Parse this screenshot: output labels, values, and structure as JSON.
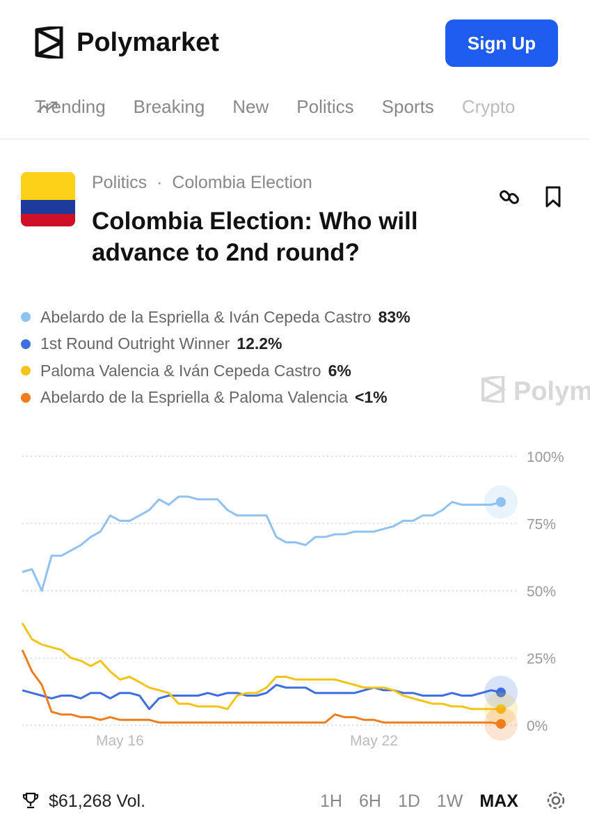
{
  "header": {
    "brand": "Polymarket",
    "signup": "Sign Up"
  },
  "nav": [
    "Trending",
    "Breaking",
    "New",
    "Politics",
    "Sports",
    "Crypto"
  ],
  "market": {
    "category": "Politics",
    "separator": "·",
    "subcategory": "Colombia Election",
    "title": "Colombia Election: Who will advance to 2nd round?"
  },
  "chart_data": {
    "type": "line",
    "categories": [
      null,
      null,
      null,
      null,
      null,
      null,
      null,
      null,
      null,
      null,
      "May 16",
      null,
      null,
      null,
      null,
      null,
      null,
      null,
      null,
      null,
      null,
      null,
      null,
      null,
      null,
      null,
      null,
      null,
      null,
      null,
      null,
      null,
      null,
      null,
      null,
      null,
      "May 22",
      null,
      null,
      null,
      null,
      null,
      null,
      null,
      null,
      null,
      null,
      null,
      null,
      null
    ],
    "series": [
      {
        "name": "Abelardo de la Espriella & Iván Cepeda Castro",
        "color": "#8fc1f2",
        "current_label": "83%",
        "values": [
          57,
          58,
          50,
          63,
          63,
          65,
          67,
          70,
          72,
          78,
          76,
          76,
          78,
          80,
          84,
          82,
          85,
          85,
          84,
          84,
          84,
          80,
          78,
          78,
          78,
          78,
          70,
          68,
          68,
          67,
          70,
          70,
          71,
          71,
          72,
          72,
          72,
          73,
          74,
          76,
          76,
          78,
          78,
          80,
          83,
          82,
          82,
          82,
          82,
          83
        ]
      },
      {
        "name": "1st Round Outright Winner",
        "color": "#3d6fe0",
        "current_label": "12.2%",
        "values": [
          13,
          12,
          11,
          10,
          11,
          11,
          10,
          12,
          12,
          10,
          12,
          12,
          11,
          6,
          10,
          11,
          11,
          11,
          11,
          12,
          11,
          12,
          12,
          11,
          11,
          12,
          15,
          14,
          14,
          14,
          12,
          12,
          12,
          12,
          12,
          13,
          14,
          13,
          13,
          12,
          12,
          11,
          11,
          11,
          12,
          11,
          11,
          12,
          13,
          12.2
        ]
      },
      {
        "name": "Paloma Valencia & Iván Cepeda Castro",
        "color": "#f2c418",
        "current_label": "6%",
        "values": [
          38,
          32,
          30,
          29,
          28,
          25,
          24,
          22,
          24,
          20,
          17,
          18,
          16,
          14,
          13,
          12,
          8,
          8,
          7,
          7,
          7,
          6,
          11,
          12,
          12,
          14,
          18,
          18,
          17,
          17,
          17,
          17,
          17,
          16,
          15,
          14,
          14,
          14,
          13,
          11,
          10,
          9,
          8,
          8,
          7,
          7,
          6,
          6,
          6,
          6
        ]
      },
      {
        "name": "Abelardo de la Espriella & Paloma Valencia",
        "color": "#f07d1c",
        "current_label": "<1%",
        "values": [
          28,
          20,
          15,
          5,
          4,
          4,
          3,
          3,
          2,
          3,
          2,
          2,
          2,
          2,
          1,
          1,
          1,
          1,
          1,
          1,
          1,
          1,
          1,
          1,
          1,
          1,
          1,
          1,
          1,
          1,
          1,
          1,
          4,
          3,
          3,
          2,
          2,
          1,
          1,
          1,
          1,
          1,
          1,
          1,
          1,
          1,
          1,
          1,
          1,
          0.5
        ]
      }
    ],
    "ylim": [
      0,
      100
    ],
    "yticks": [
      {
        "value": 0,
        "label": "0%"
      },
      {
        "value": 25,
        "label": "25%"
      },
      {
        "value": 50,
        "label": "50%"
      },
      {
        "value": 75,
        "label": "75%"
      },
      {
        "value": 100,
        "label": "100%"
      }
    ],
    "grid": true
  },
  "footer": {
    "volume": "$61,268 Vol.",
    "ranges": [
      "1H",
      "6H",
      "1D",
      "1W",
      "MAX"
    ],
    "active_range": "MAX"
  }
}
